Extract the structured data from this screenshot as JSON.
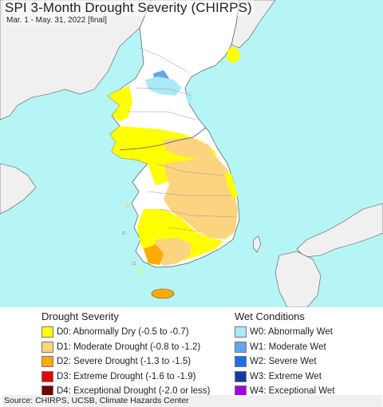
{
  "header": {
    "title": "SPI 3-Month Drought Severity (CHIRPS)",
    "subtitle": "Mar. 1 - May. 31, 2022 [final]"
  },
  "map": {
    "sea_color": "#b6f5f5",
    "land_color": "#ffffff",
    "outside_color": "#f0f0f0"
  },
  "legend": {
    "drought": {
      "title": "Drought Severity",
      "items": [
        {
          "label": "D0: Abnormally Dry (-0.5 to -0.7)",
          "color": "#ffff00"
        },
        {
          "label": "D1: Moderate Drought (-0.8 to -1.2)",
          "color": "#fcd37f"
        },
        {
          "label": "D2: Severe Drought (-1.3 to -1.5)",
          "color": "#ffaa00"
        },
        {
          "label": "D3: Extreme Drought (-1.6 to -1.9)",
          "color": "#e60000"
        },
        {
          "label": "D4: Exceptional Drought (-2.0 or less)",
          "color": "#730000"
        }
      ]
    },
    "wet": {
      "title": "Wet Conditions",
      "items": [
        {
          "label": "W0: Abnormally Wet",
          "color": "#aae9f8"
        },
        {
          "label": "W1: Moderate Wet",
          "color": "#64a5f0"
        },
        {
          "label": "W2: Severe Wet",
          "color": "#1e6ee6"
        },
        {
          "label": "W3: Extreme Wet",
          "color": "#143ca0"
        },
        {
          "label": "W4: Exceptional Wet",
          "color": "#a000dc"
        }
      ]
    }
  },
  "footer": {
    "source": "Source: CHIRPS, UCSB, Climate Hazards Center"
  }
}
